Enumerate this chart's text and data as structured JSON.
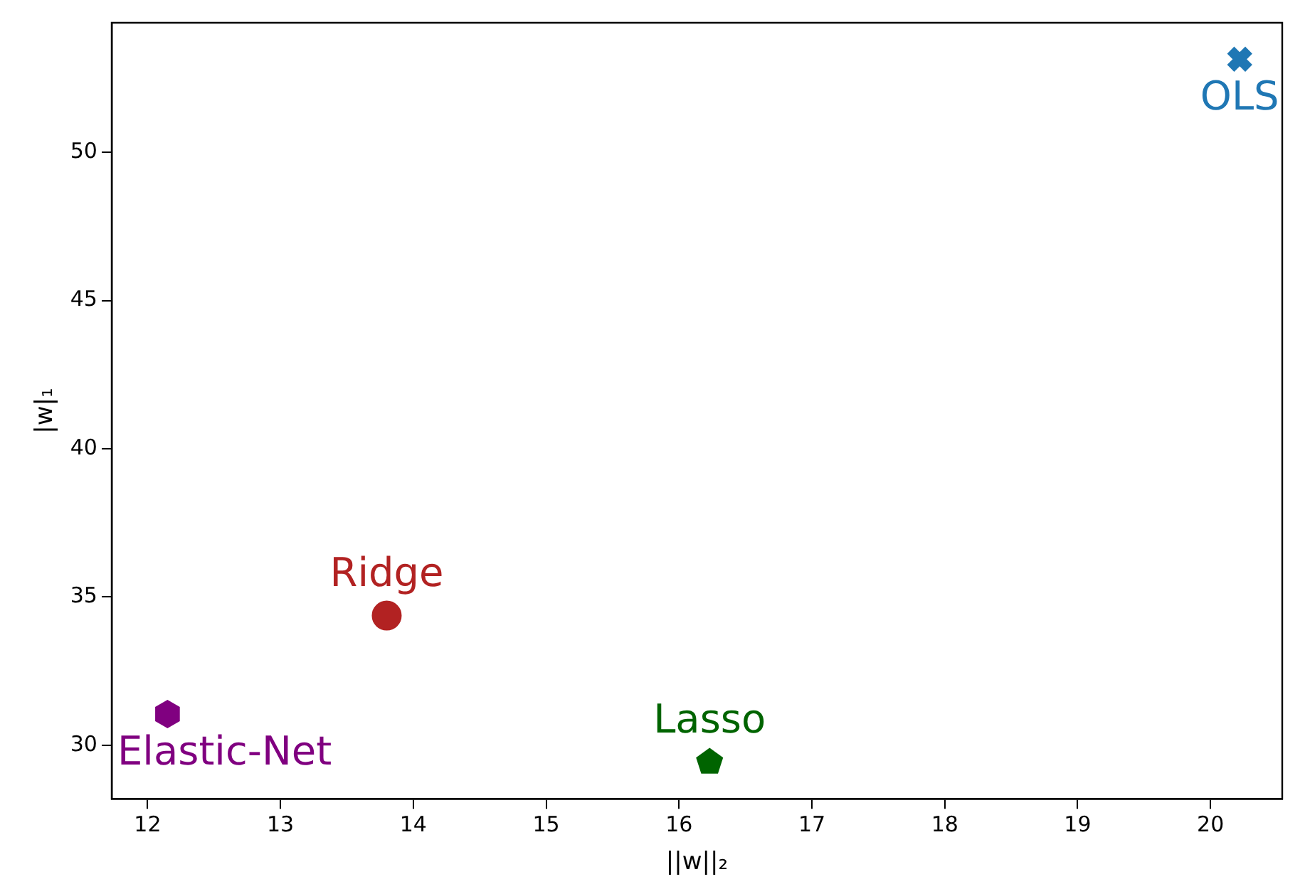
{
  "chart_data": {
    "type": "scatter",
    "xlabel": "||w||₂",
    "ylabel": "|w|₁",
    "xlim": [
      11.73,
      20.54
    ],
    "ylim": [
      28.19,
      54.37
    ],
    "xticks": [
      12,
      13,
      14,
      15,
      16,
      17,
      18,
      19,
      20
    ],
    "yticks": [
      30,
      35,
      40,
      45,
      50
    ],
    "grid": false,
    "series": [
      {
        "name": "OLS",
        "color": "#1f77b4",
        "marker": "cross",
        "x": [
          20.22
        ],
        "values": [
          53.14
        ]
      },
      {
        "name": "Ridge",
        "color": "#b22222",
        "marker": "circle",
        "x": [
          13.8
        ],
        "values": [
          34.37
        ]
      },
      {
        "name": "Elastic-Net",
        "color": "#800080",
        "x": [
          12.15
        ],
        "values": [
          31.05
        ]
      },
      {
        "name": "Lasso",
        "color": "#006400",
        "x": [
          16.23
        ],
        "values": [
          29.43
        ]
      }
    ]
  }
}
